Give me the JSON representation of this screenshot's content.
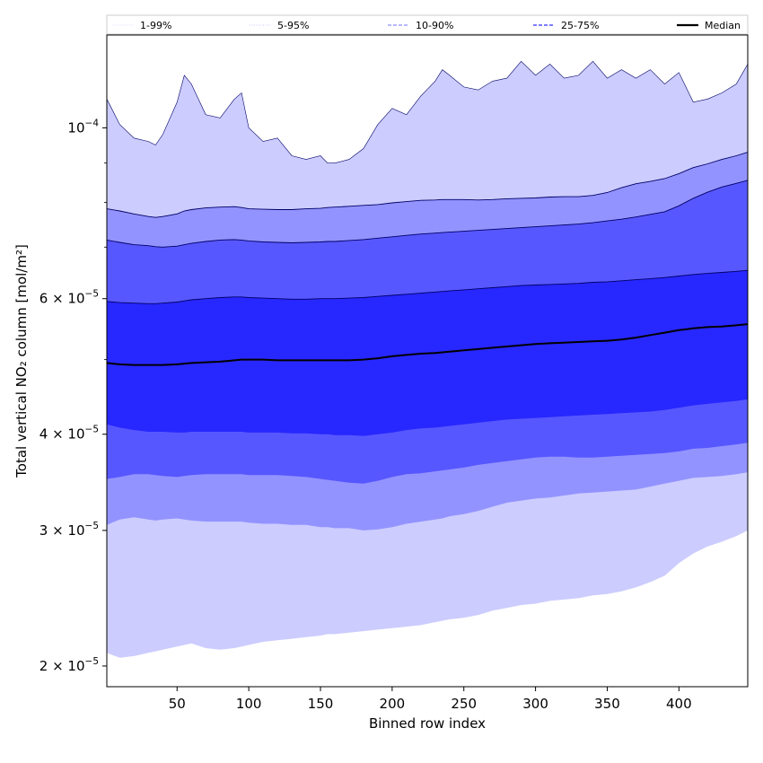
{
  "chart_data": {
    "type": "area",
    "xlabel": "Binned row index",
    "ylabel": "Total vertical NO₂ column [mol/m²]",
    "y_scale": "log",
    "xlim": [
      1,
      448
    ],
    "ylim": [
      1.88e-05,
      0.000132
    ],
    "x_ticks": [
      {
        "value": 50,
        "label": "50"
      },
      {
        "value": 100,
        "label": "100"
      },
      {
        "value": 150,
        "label": "150"
      },
      {
        "value": 200,
        "label": "200"
      },
      {
        "value": 250,
        "label": "250"
      },
      {
        "value": 300,
        "label": "300"
      },
      {
        "value": 350,
        "label": "350"
      },
      {
        "value": 400,
        "label": "400"
      }
    ],
    "y_ticks": [
      {
        "value": 2e-05,
        "mantissa": "2",
        "exponent": "−5"
      },
      {
        "value": 3e-05,
        "mantissa": "3",
        "exponent": "−5"
      },
      {
        "value": 4e-05,
        "mantissa": "4",
        "exponent": "−5"
      },
      {
        "value": 6e-05,
        "mantissa": "6",
        "exponent": "−5"
      },
      {
        "value": 0.0001,
        "mantissa": "10",
        "exponent": "−4"
      }
    ],
    "legend": {
      "placement": "top, full width",
      "entries": [
        {
          "label": "1-99%",
          "color": "#ececff",
          "style": "solid",
          "width": 0.8
        },
        {
          "label": "5-95%",
          "color": "#b9b9ff",
          "style": "dotted",
          "width": 0.8
        },
        {
          "label": "10-90%",
          "color": "#8f8fff",
          "style": "dashed",
          "width": 1.2
        },
        {
          "label": "25-75%",
          "color": "#5252ff",
          "style": "dashed",
          "width": 1.5
        },
        {
          "label": "Median",
          "color": "#000000",
          "style": "solid",
          "width": 2.2
        }
      ]
    },
    "x": [
      1,
      10,
      20,
      30,
      35,
      40,
      50,
      55,
      60,
      70,
      80,
      90,
      95,
      100,
      110,
      120,
      130,
      140,
      150,
      155,
      160,
      170,
      180,
      190,
      200,
      210,
      220,
      230,
      235,
      240,
      250,
      260,
      270,
      280,
      290,
      300,
      310,
      320,
      330,
      340,
      350,
      360,
      370,
      380,
      390,
      400,
      410,
      420,
      430,
      440,
      448
    ],
    "series": [
      {
        "name": "1-99%",
        "fill": "#ccccff",
        "lower": [
          2.08e-05,
          2.05e-05,
          2.06e-05,
          2.08e-05,
          2.09e-05,
          2.1e-05,
          2.12e-05,
          2.13e-05,
          2.14e-05,
          2.11e-05,
          2.1e-05,
          2.11e-05,
          2.12e-05,
          2.13e-05,
          2.15e-05,
          2.16e-05,
          2.17e-05,
          2.18e-05,
          2.19e-05,
          2.2e-05,
          2.2e-05,
          2.21e-05,
          2.22e-05,
          2.23e-05,
          2.24e-05,
          2.25e-05,
          2.26e-05,
          2.28e-05,
          2.29e-05,
          2.3e-05,
          2.31e-05,
          2.33e-05,
          2.36e-05,
          2.38e-05,
          2.4e-05,
          2.41e-05,
          2.43e-05,
          2.44e-05,
          2.45e-05,
          2.47e-05,
          2.48e-05,
          2.5e-05,
          2.53e-05,
          2.57e-05,
          2.62e-05,
          2.72e-05,
          2.8e-05,
          2.86e-05,
          2.9e-05,
          2.95e-05,
          3e-05
        ],
        "upper": [
          0.000109,
          0.000101,
          9.7e-05,
          9.6e-05,
          9.5e-05,
          9.8e-05,
          0.000108,
          0.000117,
          0.000114,
          0.000104,
          0.000103,
          0.000109,
          0.000111,
          0.0001,
          9.6e-05,
          9.7e-05,
          9.2e-05,
          9.1e-05,
          9.2e-05,
          9e-05,
          9e-05,
          9.1e-05,
          9.4e-05,
          0.000101,
          0.000106,
          0.000104,
          0.00011,
          0.000115,
          0.000119,
          0.000117,
          0.000113,
          0.000112,
          0.000115,
          0.000116,
          0.000122,
          0.000117,
          0.000121,
          0.000116,
          0.000117,
          0.000122,
          0.000116,
          0.000119,
          0.000116,
          0.000119,
          0.000114,
          0.000118,
          0.000108,
          0.000109,
          0.000111,
          0.000114,
          0.000121
        ]
      },
      {
        "name": "5-95%",
        "fill": "#9393ff",
        "lower": [
          3.05e-05,
          3.1e-05,
          3.12e-05,
          3.1e-05,
          3.09e-05,
          3.1e-05,
          3.11e-05,
          3.1e-05,
          3.09e-05,
          3.08e-05,
          3.08e-05,
          3.08e-05,
          3.08e-05,
          3.07e-05,
          3.06e-05,
          3.06e-05,
          3.05e-05,
          3.05e-05,
          3.03e-05,
          3.03e-05,
          3.02e-05,
          3.02e-05,
          3e-05,
          3.01e-05,
          3.03e-05,
          3.06e-05,
          3.08e-05,
          3.1e-05,
          3.11e-05,
          3.13e-05,
          3.15e-05,
          3.18e-05,
          3.22e-05,
          3.26e-05,
          3.28e-05,
          3.3e-05,
          3.31e-05,
          3.33e-05,
          3.35e-05,
          3.36e-05,
          3.37e-05,
          3.38e-05,
          3.39e-05,
          3.42e-05,
          3.45e-05,
          3.48e-05,
          3.51e-05,
          3.52e-05,
          3.53e-05,
          3.55e-05,
          3.57e-05
        ],
        "upper": [
          7.85e-05,
          7.8e-05,
          7.73e-05,
          7.67e-05,
          7.65e-05,
          7.67e-05,
          7.73e-05,
          7.8e-05,
          7.83e-05,
          7.87e-05,
          7.89e-05,
          7.9e-05,
          7.88e-05,
          7.85e-05,
          7.84e-05,
          7.83e-05,
          7.83e-05,
          7.85e-05,
          7.86e-05,
          7.88e-05,
          7.89e-05,
          7.91e-05,
          7.93e-05,
          7.95e-05,
          7.99e-05,
          8.02e-05,
          8.05e-05,
          8.06e-05,
          8.07e-05,
          8.07e-05,
          8.07e-05,
          8.06e-05,
          8.07e-05,
          8.09e-05,
          8.1e-05,
          8.11e-05,
          8.13e-05,
          8.14e-05,
          8.14e-05,
          8.17e-05,
          8.24e-05,
          8.36e-05,
          8.46e-05,
          8.52e-05,
          8.59e-05,
          8.72e-05,
          8.88e-05,
          8.98e-05,
          9.1e-05,
          9.2e-05,
          9.3e-05
        ]
      },
      {
        "name": "10-90%",
        "fill": "#5757ff",
        "lower": [
          3.5e-05,
          3.52e-05,
          3.55e-05,
          3.55e-05,
          3.54e-05,
          3.53e-05,
          3.52e-05,
          3.53e-05,
          3.54e-05,
          3.55e-05,
          3.55e-05,
          3.55e-05,
          3.55e-05,
          3.54e-05,
          3.54e-05,
          3.54e-05,
          3.53e-05,
          3.52e-05,
          3.5e-05,
          3.49e-05,
          3.48e-05,
          3.46e-05,
          3.45e-05,
          3.48e-05,
          3.52e-05,
          3.55e-05,
          3.56e-05,
          3.58e-05,
          3.59e-05,
          3.6e-05,
          3.62e-05,
          3.65e-05,
          3.67e-05,
          3.69e-05,
          3.71e-05,
          3.73e-05,
          3.74e-05,
          3.74e-05,
          3.73e-05,
          3.73e-05,
          3.74e-05,
          3.75e-05,
          3.76e-05,
          3.77e-05,
          3.78e-05,
          3.8e-05,
          3.83e-05,
          3.84e-05,
          3.86e-05,
          3.88e-05,
          3.9e-05
        ],
        "upper": [
          7.15e-05,
          7.1e-05,
          7.05e-05,
          7.03e-05,
          7.01e-05,
          7e-05,
          7.02e-05,
          7.05e-05,
          7.08e-05,
          7.12e-05,
          7.15e-05,
          7.16e-05,
          7.15e-05,
          7.13e-05,
          7.11e-05,
          7.1e-05,
          7.09e-05,
          7.1e-05,
          7.11e-05,
          7.12e-05,
          7.12e-05,
          7.14e-05,
          7.16e-05,
          7.19e-05,
          7.22e-05,
          7.25e-05,
          7.28e-05,
          7.3e-05,
          7.31e-05,
          7.32e-05,
          7.34e-05,
          7.36e-05,
          7.38e-05,
          7.4e-05,
          7.42e-05,
          7.44e-05,
          7.46e-05,
          7.48e-05,
          7.5e-05,
          7.53e-05,
          7.57e-05,
          7.61e-05,
          7.66e-05,
          7.72e-05,
          7.78e-05,
          7.92e-05,
          8.1e-05,
          8.25e-05,
          8.38e-05,
          8.47e-05,
          8.55e-05
        ]
      },
      {
        "name": "25-75%",
        "fill": "#2727ff",
        "lower": [
          4.12e-05,
          4.08e-05,
          4.05e-05,
          4.03e-05,
          4.03e-05,
          4.03e-05,
          4.02e-05,
          4.02e-05,
          4.03e-05,
          4.03e-05,
          4.03e-05,
          4.03e-05,
          4.03e-05,
          4.02e-05,
          4.02e-05,
          4.02e-05,
          4.01e-05,
          4.01e-05,
          4e-05,
          4e-05,
          3.99e-05,
          3.99e-05,
          3.98e-05,
          4e-05,
          4.02e-05,
          4.05e-05,
          4.07e-05,
          4.08e-05,
          4.09e-05,
          4.1e-05,
          4.12e-05,
          4.14e-05,
          4.16e-05,
          4.18e-05,
          4.19e-05,
          4.2e-05,
          4.21e-05,
          4.22e-05,
          4.23e-05,
          4.24e-05,
          4.25e-05,
          4.26e-05,
          4.27e-05,
          4.28e-05,
          4.3e-05,
          4.33e-05,
          4.36e-05,
          4.38e-05,
          4.4e-05,
          4.42e-05,
          4.44e-05
        ],
        "upper": [
          5.95e-05,
          5.93e-05,
          5.92e-05,
          5.91e-05,
          5.91e-05,
          5.92e-05,
          5.94e-05,
          5.96e-05,
          5.98e-05,
          6e-05,
          6.02e-05,
          6.03e-05,
          6.03e-05,
          6.02e-05,
          6.01e-05,
          6e-05,
          5.99e-05,
          5.99e-05,
          6e-05,
          6e-05,
          6e-05,
          6.01e-05,
          6.02e-05,
          6.04e-05,
          6.06e-05,
          6.08e-05,
          6.1e-05,
          6.12e-05,
          6.13e-05,
          6.14e-05,
          6.16e-05,
          6.18e-05,
          6.2e-05,
          6.22e-05,
          6.24e-05,
          6.25e-05,
          6.26e-05,
          6.27e-05,
          6.28e-05,
          6.3e-05,
          6.31e-05,
          6.33e-05,
          6.35e-05,
          6.37e-05,
          6.39e-05,
          6.42e-05,
          6.45e-05,
          6.47e-05,
          6.49e-05,
          6.51e-05,
          6.53e-05
        ]
      }
    ],
    "median": [
      4.95e-05,
      4.93e-05,
      4.92e-05,
      4.92e-05,
      4.92e-05,
      4.92e-05,
      4.93e-05,
      4.94e-05,
      4.95e-05,
      4.96e-05,
      4.97e-05,
      4.99e-05,
      5e-05,
      5e-05,
      5e-05,
      4.99e-05,
      4.99e-05,
      4.99e-05,
      4.99e-05,
      4.99e-05,
      4.99e-05,
      4.99e-05,
      5e-05,
      5.02e-05,
      5.05e-05,
      5.07e-05,
      5.09e-05,
      5.1e-05,
      5.11e-05,
      5.12e-05,
      5.14e-05,
      5.16e-05,
      5.18e-05,
      5.2e-05,
      5.22e-05,
      5.24e-05,
      5.25e-05,
      5.26e-05,
      5.27e-05,
      5.28e-05,
      5.29e-05,
      5.31e-05,
      5.34e-05,
      5.38e-05,
      5.42e-05,
      5.46e-05,
      5.49e-05,
      5.51e-05,
      5.52e-05,
      5.54e-05,
      5.56e-05
    ],
    "grid": false
  }
}
